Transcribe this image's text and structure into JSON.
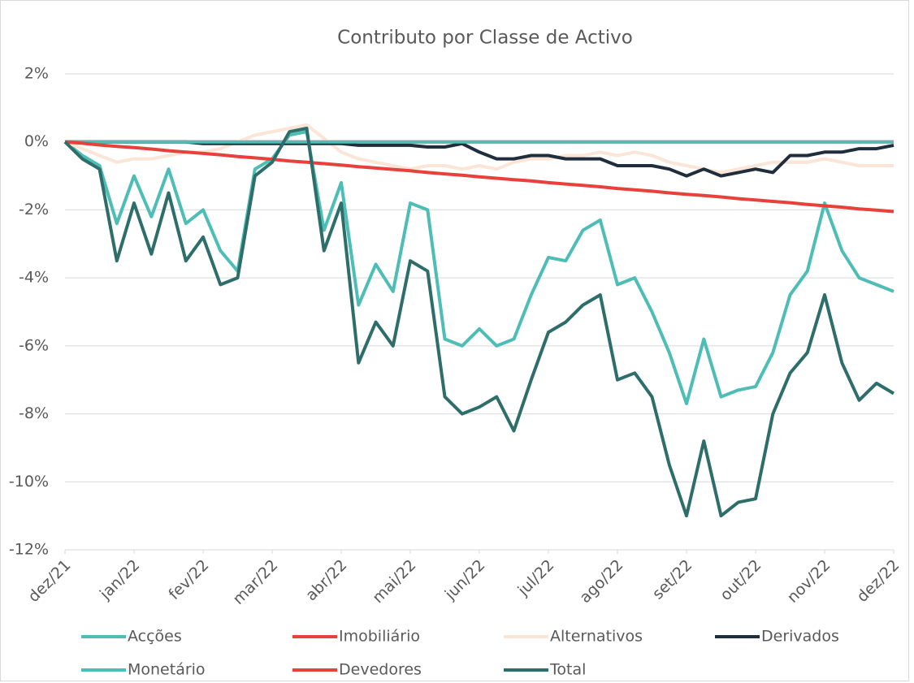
{
  "chart_data": {
    "type": "line",
    "title": "Contributo por Classe de Activo",
    "x": [
      0,
      0.25,
      0.5,
      0.75,
      1,
      1.25,
      1.5,
      1.75,
      2,
      2.25,
      2.5,
      2.75,
      3,
      3.25,
      3.5,
      3.75,
      4,
      4.25,
      4.5,
      4.75,
      5,
      5.25,
      5.5,
      5.75,
      6,
      6.25,
      6.5,
      6.75,
      7,
      7.25,
      7.5,
      7.75,
      8,
      8.25,
      8.5,
      8.75,
      9,
      9.25,
      9.5,
      9.75,
      10,
      10.25,
      10.5,
      10.75,
      11,
      11.25,
      11.5,
      11.75,
      12
    ],
    "xlim": [
      0,
      12
    ],
    "xticks": [
      {
        "value": 0,
        "label": "dez/21"
      },
      {
        "value": 1,
        "label": "jan/22"
      },
      {
        "value": 2,
        "label": "fev/22"
      },
      {
        "value": 3,
        "label": "mar/22"
      },
      {
        "value": 4,
        "label": "abr/22"
      },
      {
        "value": 5,
        "label": "mai/22"
      },
      {
        "value": 6,
        "label": "jun/22"
      },
      {
        "value": 7,
        "label": "jul/22"
      },
      {
        "value": 8,
        "label": "ago/22"
      },
      {
        "value": 9,
        "label": "set/22"
      },
      {
        "value": 10,
        "label": "out/22"
      },
      {
        "value": 11,
        "label": "nov/22"
      },
      {
        "value": 12,
        "label": "dez/22"
      }
    ],
    "ylim": [
      -12,
      2
    ],
    "yticks": [
      {
        "value": 2,
        "label": "2%"
      },
      {
        "value": 0,
        "label": "0%"
      },
      {
        "value": -2,
        "label": "-2%"
      },
      {
        "value": -4,
        "label": "-4%"
      },
      {
        "value": -6,
        "label": "-6%"
      },
      {
        "value": -8,
        "label": "-8%"
      },
      {
        "value": -10,
        "label": "-10%"
      },
      {
        "value": -12,
        "label": "-12%"
      }
    ],
    "grid": true,
    "legend": "bottom",
    "series": [
      {
        "name": "Acções",
        "color": "#4dbdb5",
        "values": [
          0,
          -0.4,
          -0.7,
          -2.4,
          -1.0,
          -2.2,
          -0.8,
          -2.4,
          -2.0,
          -3.2,
          -3.8,
          -0.8,
          -0.5,
          0.2,
          0.3,
          -2.6,
          -1.2,
          -4.8,
          -3.6,
          -4.4,
          -1.8,
          -2.0,
          -5.8,
          -6.0,
          -5.5,
          -6.0,
          -5.8,
          -4.5,
          -3.4,
          -3.5,
          -2.6,
          -2.3,
          -4.2,
          -4.0,
          -5.0,
          -6.2,
          -7.7,
          -5.8,
          -7.5,
          -7.3,
          -7.2,
          -6.2,
          -4.5,
          -3.8,
          -1.8,
          -3.2,
          -4.0,
          -4.2,
          -4.4
        ]
      },
      {
        "name": "Imobiliário",
        "color": "#e8403a",
        "values": [
          0,
          0,
          0,
          0,
          0,
          0,
          0,
          0,
          0,
          0,
          0,
          0,
          0,
          0,
          0,
          0,
          0,
          0,
          0,
          0,
          0,
          0,
          0,
          0,
          0,
          0,
          0,
          0,
          0,
          0,
          0,
          0,
          0,
          0,
          0,
          0,
          0,
          0,
          0,
          0,
          0,
          0,
          0,
          0,
          0,
          0,
          0,
          0,
          0
        ]
      },
      {
        "name": "Alternativos",
        "color": "#fbe5d6",
        "values": [
          0,
          -0.2,
          -0.4,
          -0.6,
          -0.5,
          -0.5,
          -0.4,
          -0.3,
          -0.3,
          -0.2,
          0.0,
          0.2,
          0.3,
          0.4,
          0.5,
          0.1,
          -0.3,
          -0.5,
          -0.6,
          -0.7,
          -0.8,
          -0.7,
          -0.7,
          -0.8,
          -0.7,
          -0.8,
          -0.6,
          -0.5,
          -0.5,
          -0.4,
          -0.4,
          -0.3,
          -0.4,
          -0.3,
          -0.4,
          -0.6,
          -0.7,
          -0.8,
          -0.9,
          -0.8,
          -0.7,
          -0.6,
          -0.6,
          -0.6,
          -0.5,
          -0.6,
          -0.7,
          -0.7,
          -0.7
        ]
      },
      {
        "name": "Derivados",
        "color": "#1f2d3d",
        "values": [
          0,
          0,
          0,
          0,
          0,
          0,
          0,
          0,
          -0.05,
          -0.05,
          -0.05,
          -0.05,
          -0.05,
          -0.05,
          -0.05,
          -0.05,
          -0.05,
          -0.1,
          -0.1,
          -0.1,
          -0.1,
          -0.15,
          -0.15,
          -0.05,
          -0.3,
          -0.5,
          -0.5,
          -0.4,
          -0.4,
          -0.5,
          -0.5,
          -0.5,
          -0.7,
          -0.7,
          -0.7,
          -0.8,
          -1.0,
          -0.8,
          -1.0,
          -0.9,
          -0.8,
          -0.9,
          -0.4,
          -0.4,
          -0.3,
          -0.3,
          -0.2,
          -0.2,
          -0.1
        ]
      },
      {
        "name": "Monetário",
        "color": "#4dbdb5",
        "values": [
          0,
          0,
          0,
          0,
          0,
          0,
          0,
          0,
          0,
          0,
          0,
          0,
          0,
          0,
          0,
          0,
          0,
          0,
          0,
          0,
          0,
          0,
          0,
          0,
          0,
          0,
          0,
          0,
          0,
          0,
          0,
          0,
          0,
          0,
          0,
          0,
          0,
          0,
          0,
          0,
          0,
          0,
          0,
          0,
          0,
          0,
          0,
          0,
          0
        ]
      },
      {
        "name": "Devedores",
        "color": "#e8403a",
        "values": [
          0,
          -0.04,
          -0.09,
          -0.13,
          -0.17,
          -0.21,
          -0.26,
          -0.3,
          -0.34,
          -0.38,
          -0.43,
          -0.47,
          -0.51,
          -0.56,
          -0.6,
          -0.64,
          -0.68,
          -0.73,
          -0.77,
          -0.81,
          -0.85,
          -0.9,
          -0.94,
          -0.98,
          -1.03,
          -1.07,
          -1.11,
          -1.15,
          -1.2,
          -1.24,
          -1.28,
          -1.32,
          -1.37,
          -1.41,
          -1.45,
          -1.5,
          -1.54,
          -1.58,
          -1.62,
          -1.67,
          -1.71,
          -1.75,
          -1.79,
          -1.84,
          -1.88,
          -1.92,
          -1.97,
          -2.01,
          -2.05
        ]
      },
      {
        "name": "Total",
        "color": "#2e6e6a",
        "values": [
          0,
          -0.5,
          -0.8,
          -3.5,
          -1.8,
          -3.3,
          -1.5,
          -3.5,
          -2.8,
          -4.2,
          -4.0,
          -1.0,
          -0.6,
          0.3,
          0.4,
          -3.2,
          -1.8,
          -6.5,
          -5.3,
          -6.0,
          -3.5,
          -3.8,
          -7.5,
          -8.0,
          -7.8,
          -7.5,
          -8.5,
          -7.0,
          -5.6,
          -5.3,
          -4.8,
          -4.5,
          -7.0,
          -6.8,
          -7.5,
          -9.5,
          -11.0,
          -8.8,
          -11.0,
          -10.6,
          -10.5,
          -8.0,
          -6.8,
          -6.2,
          -4.5,
          -6.5,
          -7.6,
          -7.1,
          -7.4
        ]
      }
    ]
  }
}
